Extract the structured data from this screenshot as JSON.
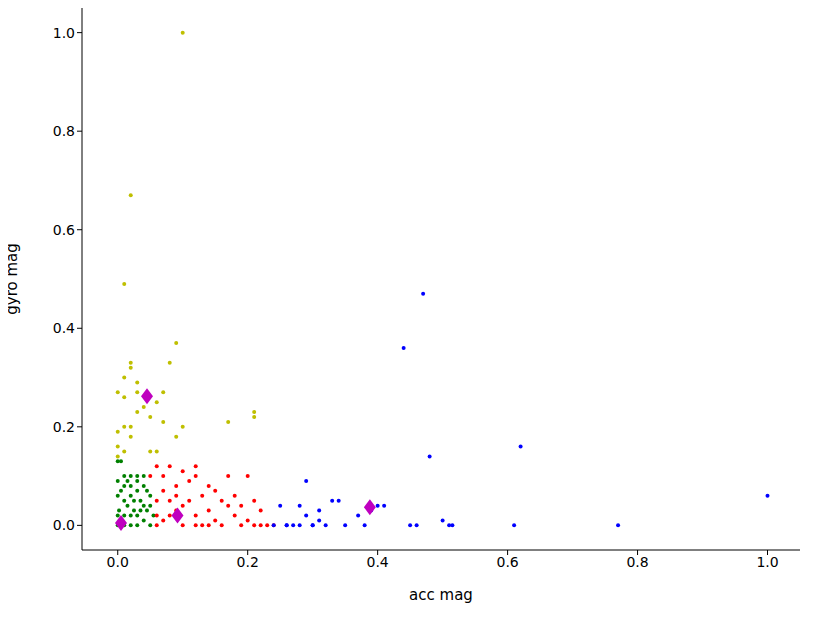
{
  "chart_data": {
    "type": "scatter",
    "x_label": "acc mag",
    "y_label": "gyro mag",
    "grid": false,
    "xlim": [
      -0.055,
      1.05
    ],
    "ylim": [
      -0.05,
      1.05
    ],
    "xticks": [
      {
        "value": 0,
        "label": "0.0"
      },
      {
        "value": 0.2,
        "label": "0.2"
      },
      {
        "value": 0.4,
        "label": "0.4"
      },
      {
        "value": 0.6,
        "label": "0.6"
      },
      {
        "value": 0.8,
        "label": "0.8"
      },
      {
        "value": 1,
        "label": "1.0"
      }
    ],
    "yticks": [
      {
        "value": 0,
        "label": "0.0"
      },
      {
        "value": 0.2,
        "label": "0.2"
      },
      {
        "value": 0.4,
        "label": "0.4"
      },
      {
        "value": 0.6,
        "label": "0.6"
      },
      {
        "value": 0.8,
        "label": "0.8"
      },
      {
        "value": 1,
        "label": "1.0"
      }
    ],
    "series": [
      {
        "color": "#008000",
        "marker": "circle",
        "x": [
          0.0,
          0.005,
          0.01,
          0.002,
          0.01,
          0.02,
          0.03,
          0.0,
          0.01,
          0.02,
          0.0,
          0.005,
          0.03,
          0.04,
          0.05,
          0.045,
          0.04,
          0.05,
          0.03,
          0.02,
          0.015,
          0.025,
          0.035,
          0.03,
          0.01,
          0.0,
          0.02,
          0.04,
          0.03,
          0.015,
          0.05,
          0.055,
          0.0,
          0.01,
          0.025,
          0.045,
          0.02,
          0.035,
          0.005,
          0.04
        ],
        "values": [
          0.0,
          0.01,
          0.02,
          0.03,
          0.05,
          0.06,
          0.07,
          0.09,
          0.1,
          0.1,
          0.13,
          0.13,
          0.09,
          0.08,
          0.06,
          0.03,
          0.01,
          0.0,
          0.0,
          0.0,
          0.04,
          0.03,
          0.05,
          0.02,
          0.08,
          0.06,
          0.08,
          0.1,
          0.1,
          0.09,
          0.04,
          0.02,
          0.02,
          0.0,
          0.05,
          0.07,
          0.02,
          0.03,
          0.07,
          0.04
        ]
      },
      {
        "color": "#ff0000",
        "marker": "circle",
        "x": [
          0.06,
          0.07,
          0.08,
          0.09,
          0.1,
          0.11,
          0.12,
          0.13,
          0.14,
          0.15,
          0.16,
          0.17,
          0.18,
          0.19,
          0.2,
          0.21,
          0.22,
          0.23,
          0.2,
          0.17,
          0.14,
          0.12,
          0.1,
          0.08,
          0.07,
          0.06,
          0.09,
          0.11,
          0.13,
          0.15,
          0.16,
          0.18,
          0.19,
          0.21,
          0.06,
          0.07,
          0.05,
          0.06,
          0.08,
          0.1,
          0.12,
          0.14,
          0.24,
          0.22,
          0.12,
          0.09
        ],
        "values": [
          0.0,
          0.01,
          0.02,
          0.03,
          0.0,
          0.05,
          0.02,
          0.0,
          0.03,
          0.01,
          0.0,
          0.04,
          0.02,
          0.0,
          0.01,
          0.0,
          0.03,
          0.0,
          0.1,
          0.1,
          0.08,
          0.12,
          0.11,
          0.12,
          0.1,
          0.12,
          0.08,
          0.09,
          0.06,
          0.07,
          0.05,
          0.06,
          0.04,
          0.05,
          0.05,
          0.07,
          0.1,
          0.02,
          0.05,
          0.04,
          0.0,
          0.0,
          0.0,
          0.0,
          0.1,
          0.06
        ]
      },
      {
        "color": "#0000ff",
        "marker": "circle",
        "x": [
          0.24,
          0.25,
          0.26,
          0.27,
          0.28,
          0.28,
          0.29,
          0.29,
          0.3,
          0.31,
          0.31,
          0.32,
          0.33,
          0.34,
          0.35,
          0.37,
          0.38,
          0.39,
          0.4,
          0.41,
          0.44,
          0.45,
          0.46,
          0.47,
          0.48,
          0.5,
          0.51,
          0.515,
          0.61,
          0.62,
          0.77,
          1.0,
          0.26,
          0.3
        ],
        "values": [
          0.0,
          0.04,
          0.0,
          0.0,
          0.0,
          0.04,
          0.09,
          0.02,
          0.0,
          0.01,
          0.03,
          0.0,
          0.05,
          0.05,
          0.0,
          0.02,
          0.0,
          0.03,
          0.04,
          0.04,
          0.36,
          0.0,
          0.0,
          0.47,
          0.14,
          0.01,
          0.0,
          0.0,
          0.0,
          0.16,
          0.0,
          0.06,
          0.0,
          0.0
        ]
      },
      {
        "color": "#bfbf00",
        "marker": "circle",
        "x": [
          0.1,
          0.02,
          0.01,
          0.02,
          0.02,
          0.09,
          0.08,
          0.01,
          0.03,
          0.0,
          0.01,
          0.06,
          0.03,
          0.05,
          0.01,
          0.02,
          0.21,
          0.21,
          0.17,
          0.1,
          0.07,
          0.09,
          0.0,
          0.01,
          0.05,
          0.06,
          0.0,
          0.02,
          0.04,
          0.07,
          0.03,
          0.0
        ],
        "values": [
          1.0,
          0.67,
          0.49,
          0.33,
          0.32,
          0.37,
          0.33,
          0.3,
          0.29,
          0.27,
          0.26,
          0.25,
          0.23,
          0.22,
          0.2,
          0.2,
          0.23,
          0.22,
          0.21,
          0.2,
          0.21,
          0.18,
          0.16,
          0.15,
          0.15,
          0.15,
          0.14,
          0.18,
          0.24,
          0.27,
          0.27,
          0.19
        ]
      },
      {
        "color": "#bf00bf",
        "marker": "diamond",
        "x": [
          0.005,
          0.045,
          0.092,
          0.388
        ],
        "values": [
          0.005,
          0.262,
          0.02,
          0.037
        ]
      }
    ]
  }
}
